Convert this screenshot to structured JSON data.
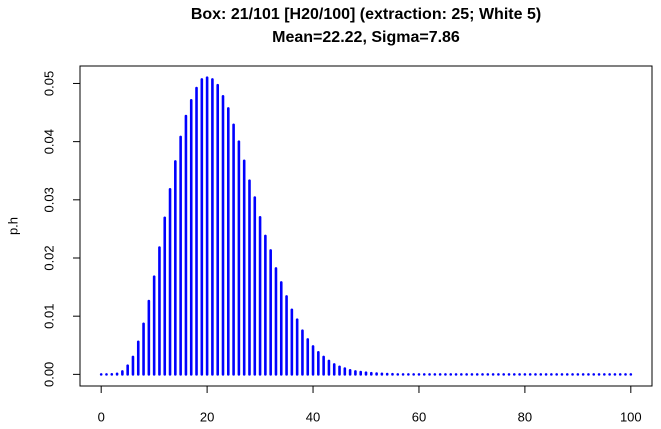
{
  "chart_data": {
    "type": "bar",
    "title": "Box: 21/101 [H20/100]   (extraction: 25; White 5)",
    "subtitle": "Mean=22.22,  Sigma=7.86",
    "y_label": "p.h",
    "color": "#0000ff",
    "x": [
      0,
      1,
      2,
      3,
      4,
      5,
      6,
      7,
      8,
      9,
      10,
      11,
      12,
      13,
      14,
      15,
      16,
      17,
      18,
      19,
      20,
      21,
      22,
      23,
      24,
      25,
      26,
      27,
      28,
      29,
      30,
      31,
      32,
      33,
      34,
      35,
      36,
      37,
      38,
      39,
      40,
      41,
      42,
      43,
      44,
      45,
      46,
      47,
      48,
      49,
      50,
      51,
      52,
      53,
      54,
      55,
      56,
      57,
      58,
      59,
      60,
      61,
      62,
      63,
      64,
      65,
      66,
      67,
      68,
      69,
      70,
      71,
      72,
      73,
      74,
      75,
      76,
      77,
      78,
      79,
      80,
      81,
      82,
      83,
      84,
      85,
      86,
      87,
      88,
      89,
      90,
      91,
      92,
      93,
      94,
      95,
      96,
      97,
      98,
      99,
      100
    ],
    "values": [
      0,
      0,
      1e-05,
      0.0001,
      0.0005,
      0.0015,
      0.003,
      0.0056,
      0.0087,
      0.0126,
      0.0168,
      0.0218,
      0.0269,
      0.0318,
      0.0366,
      0.0408,
      0.0444,
      0.0471,
      0.0492,
      0.0507,
      0.051,
      0.0507,
      0.0497,
      0.0478,
      0.0457,
      0.0429,
      0.04,
      0.0367,
      0.0333,
      0.0304,
      0.027,
      0.0238,
      0.0213,
      0.0182,
      0.0158,
      0.0134,
      0.0111,
      0.0094,
      0.0075,
      0.006,
      0.0048,
      0.0038,
      0.003,
      0.0023,
      0.0017,
      0.0013,
      0.001,
      0.0007,
      0.0005,
      0.0004,
      0.0003,
      0.0002,
      0.00013,
      0.0001,
      6e-05,
      4e-05,
      0,
      0,
      0,
      0,
      0,
      0,
      0,
      0,
      0,
      0,
      0,
      0,
      0,
      0,
      0,
      0,
      0,
      0,
      0,
      0,
      0,
      0,
      0,
      0,
      0,
      0,
      0,
      0,
      0,
      0,
      0,
      0,
      0,
      0,
      0,
      0,
      0,
      0,
      0,
      0,
      0,
      0,
      0,
      0,
      0
    ],
    "xlim": [
      -4,
      104
    ],
    "ylim": [
      -0.002,
      0.053
    ],
    "xticks": [
      0,
      20,
      40,
      60,
      80,
      100
    ],
    "yticks": [
      {
        "value": 0,
        "label": "0.00"
      },
      0.01,
      0.02,
      0.03,
      0.04,
      0.05
    ]
  }
}
